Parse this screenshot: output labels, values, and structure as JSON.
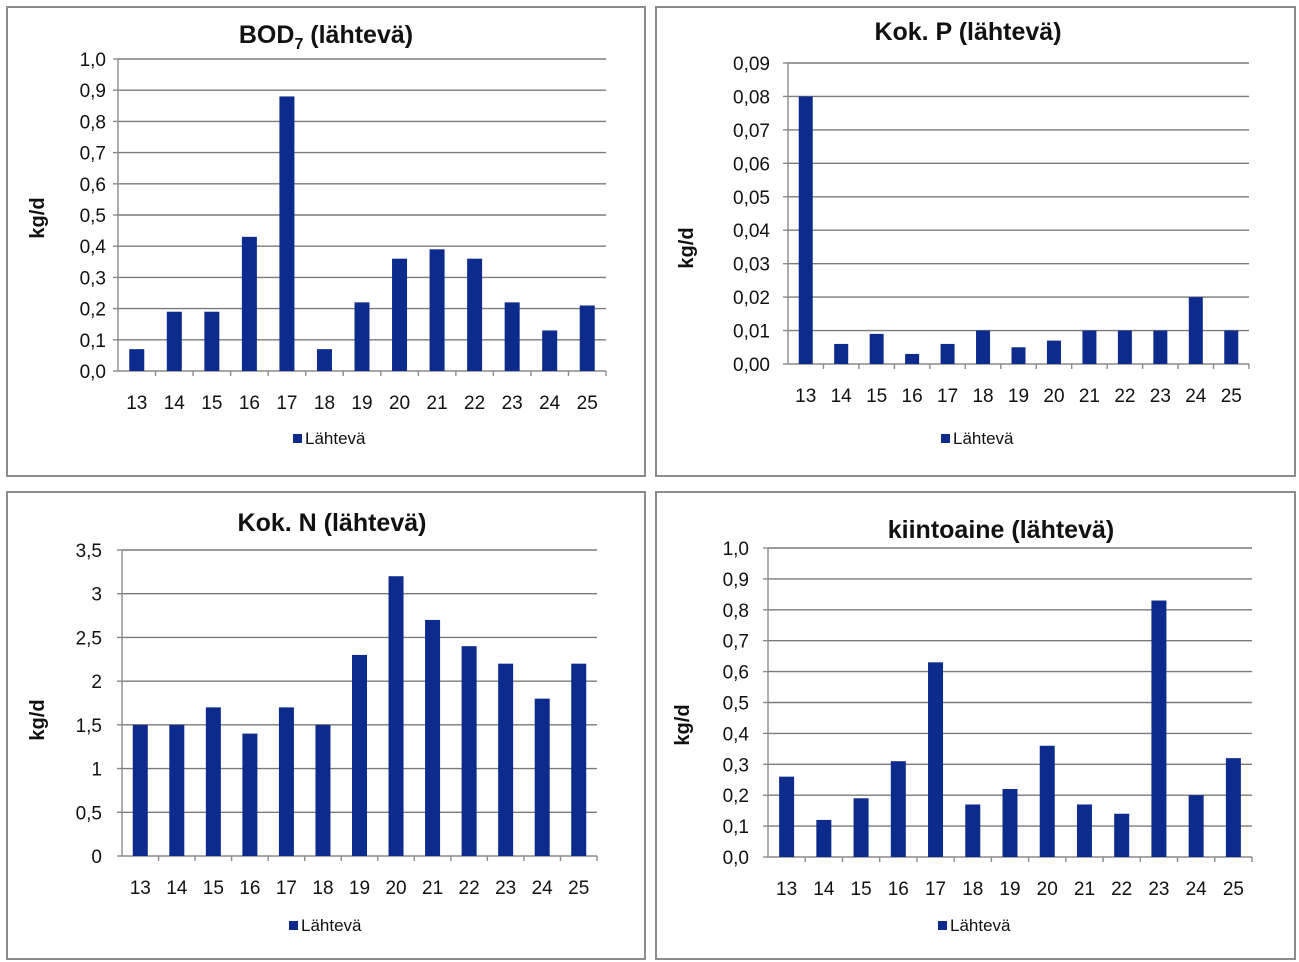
{
  "chart_data": [
    {
      "type": "bar",
      "title": "BOD",
      "title_sub": "7",
      "title_rest": " (lähtevä)",
      "ylabel": "kg/d",
      "categories": [
        "13",
        "14",
        "15",
        "16",
        "17",
        "18",
        "19",
        "20",
        "21",
        "22",
        "23",
        "24",
        "25"
      ],
      "series": [
        {
          "name": "Lähtevä",
          "values": [
            0.07,
            0.19,
            0.19,
            0.43,
            0.88,
            0.07,
            0.22,
            0.36,
            0.39,
            0.36,
            0.22,
            0.13,
            0.21
          ]
        }
      ],
      "ylim": [
        0,
        1.0
      ],
      "yticks": [
        "0,0",
        "0,1",
        "0,2",
        "0,3",
        "0,4",
        "0,5",
        "0,6",
        "0,7",
        "0,8",
        "0,9",
        "1,0"
      ],
      "grid": true,
      "legend": "bottom",
      "color": "#0d2b8c"
    },
    {
      "type": "bar",
      "title": "Kok. P (lähtevä)",
      "ylabel": "kg/d",
      "categories": [
        "13",
        "14",
        "15",
        "16",
        "17",
        "18",
        "19",
        "20",
        "21",
        "22",
        "23",
        "24",
        "25"
      ],
      "series": [
        {
          "name": "Lähtevä",
          "values": [
            0.08,
            0.006,
            0.009,
            0.003,
            0.006,
            0.01,
            0.005,
            0.007,
            0.01,
            0.01,
            0.01,
            0.02,
            0.01
          ]
        }
      ],
      "ylim": [
        0,
        0.09
      ],
      "yticks": [
        "0,00",
        "0,01",
        "0,02",
        "0,03",
        "0,04",
        "0,05",
        "0,06",
        "0,07",
        "0,08",
        "0,09"
      ],
      "grid": true,
      "legend": "bottom",
      "color": "#0d2b8c"
    },
    {
      "type": "bar",
      "title": "Kok. N (lähtevä)",
      "ylabel": "kg/d",
      "categories": [
        "13",
        "14",
        "15",
        "16",
        "17",
        "18",
        "19",
        "20",
        "21",
        "22",
        "23",
        "24",
        "25"
      ],
      "series": [
        {
          "name": "Lähtevä",
          "values": [
            1.5,
            1.5,
            1.7,
            1.4,
            1.7,
            1.5,
            2.3,
            3.2,
            2.7,
            2.4,
            2.2,
            1.8,
            2.2
          ]
        }
      ],
      "ylim": [
        0,
        3.5
      ],
      "yticks": [
        "0",
        "0,5",
        "1",
        "1,5",
        "2",
        "2,5",
        "3",
        "3,5"
      ],
      "grid": true,
      "legend": "bottom",
      "color": "#0d2b8c"
    },
    {
      "type": "bar",
      "title": "kiintoaine (lähtevä)",
      "ylabel": "kg/d",
      "categories": [
        "13",
        "14",
        "15",
        "16",
        "17",
        "18",
        "19",
        "20",
        "21",
        "22",
        "23",
        "24",
        "25"
      ],
      "series": [
        {
          "name": "Lähtevä",
          "values": [
            0.26,
            0.12,
            0.19,
            0.31,
            0.63,
            0.17,
            0.22,
            0.36,
            0.17,
            0.14,
            0.83,
            0.2,
            0.32
          ]
        }
      ],
      "ylim": [
        0,
        1.0
      ],
      "yticks": [
        "0,0",
        "0,1",
        "0,2",
        "0,3",
        "0,4",
        "0,5",
        "0,6",
        "0,7",
        "0,8",
        "0,9",
        "1,0"
      ],
      "grid": true,
      "legend": "bottom",
      "color": "#0d2b8c"
    }
  ]
}
